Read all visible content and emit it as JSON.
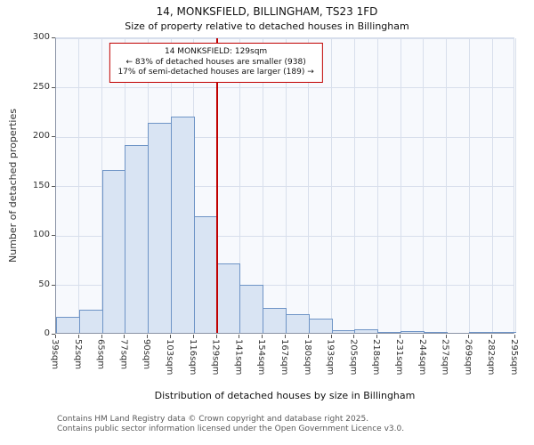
{
  "title": "14, MONKSFIELD, BILLINGHAM, TS23 1FD",
  "subtitle": "Size of property relative to detached houses in Billingham",
  "annotation": {
    "line1": "14 MONKSFIELD: 129sqm",
    "line2": "← 83% of detached houses are smaller (938)",
    "line3": "17% of semi-detached houses are larger (189) →",
    "marker_value": "129sqm",
    "border_color": "#c00000"
  },
  "footer": {
    "line1": "Contains HM Land Registry data © Crown copyright and database right 2025.",
    "line2": "Contains public sector information licensed under the Open Government Licence v3.0."
  },
  "chart_data": {
    "type": "bar",
    "title": "14, MONKSFIELD, BILLINGHAM, TS23 1FD",
    "subtitle": "Size of property relative to detached houses in Billingham",
    "xlabel": "Distribution of detached houses by size in Billingham",
    "ylabel": "Number of detached properties",
    "categories": [
      "39sqm",
      "52sqm",
      "65sqm",
      "77sqm",
      "90sqm",
      "103sqm",
      "116sqm",
      "129sqm",
      "141sqm",
      "154sqm",
      "167sqm",
      "180sqm",
      "193sqm",
      "205sqm",
      "218sqm",
      "231sqm",
      "244sqm",
      "257sqm",
      "269sqm",
      "282sqm",
      "295sqm"
    ],
    "values": [
      16,
      23,
      165,
      190,
      213,
      219,
      118,
      70,
      49,
      25,
      19,
      14,
      3,
      4,
      1,
      2,
      1,
      0,
      1,
      1
    ],
    "ylim": [
      0,
      300
    ],
    "yticks": [
      0,
      50,
      100,
      150,
      200,
      250,
      300
    ],
    "grid": true,
    "legend": null,
    "bar_fill": "#d9e4f3",
    "bar_stroke": "#6e94c6",
    "marker_line_color": "#c00000",
    "marker_category_index": 7
  }
}
